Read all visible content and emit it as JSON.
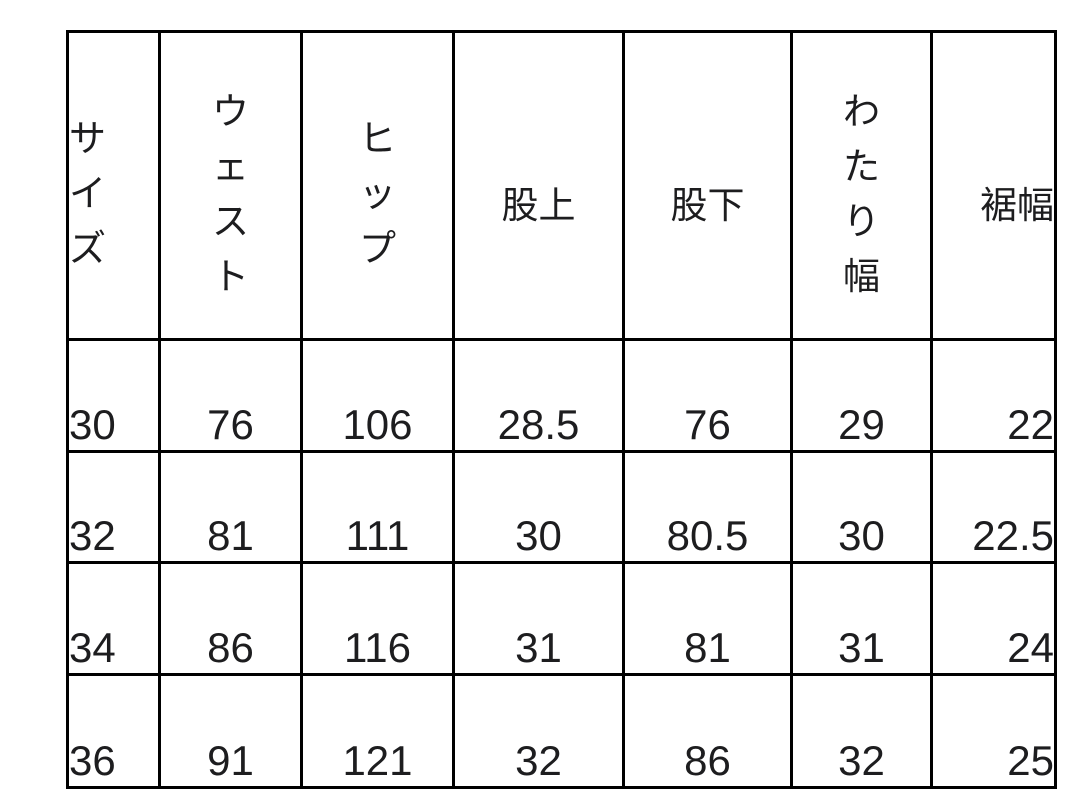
{
  "chart_data": {
    "type": "table",
    "columns": [
      "サイズ",
      "ウェスト",
      "ヒップ",
      "股上",
      "股下",
      "わたり幅",
      "裾幅"
    ],
    "rows": [
      [
        "30",
        "76",
        "106",
        "28.5",
        "76",
        "29",
        "22"
      ],
      [
        "32",
        "81",
        "111",
        "30",
        "80.5",
        "30",
        "22.5"
      ],
      [
        "34",
        "86",
        "116",
        "31",
        "81",
        "31",
        "24"
      ],
      [
        "36",
        "91",
        "121",
        "32",
        "86",
        "32",
        "25"
      ]
    ]
  },
  "colors": {
    "border": "#000000",
    "text": "#1d1d1f",
    "background": "#ffffff"
  }
}
